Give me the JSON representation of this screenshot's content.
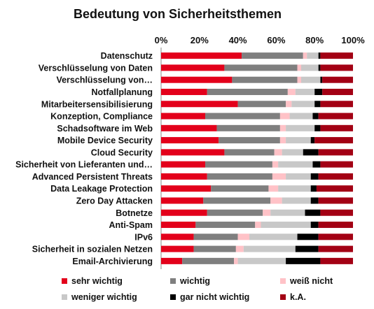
{
  "chart_data": {
    "type": "bar",
    "stacked": true,
    "orientation": "horizontal",
    "percent": true,
    "title": "Bedeutung von Sicherheitsthemen",
    "xlim": [
      0,
      100
    ],
    "x_ticks": [
      "0%",
      "20%",
      "40%",
      "60%",
      "80%",
      "100%"
    ],
    "legend_position": "bottom",
    "categories": [
      "Datenschutz",
      "Verschlüsselung von Daten",
      "Verschlüsselung von…",
      "Notfallplanung",
      "Mitarbeitersensibilisierung",
      "Konzeption, Compliance",
      "Schadsoftware im Web",
      "Mobile Device Security",
      "Cloud Security",
      "Sicherheit von Lieferanten und…",
      "Advanced Persistent Threats",
      "Data Leakage Protection",
      "Zero Day Attacken",
      "Botnetze",
      "Anti-Spam",
      "IPv6",
      "Sicherheit in sozialen Netzen",
      "Email-Archivierung"
    ],
    "series": [
      {
        "name": "sehr wichtig",
        "color": "#e3001b",
        "values": [
          42,
          33,
          37,
          24,
          40,
          23,
          29,
          30,
          33,
          23,
          24,
          26,
          22,
          24,
          18,
          17,
          17,
          11
        ]
      },
      {
        "name": "wichtig",
        "color": "#7f7f7f",
        "values": [
          32,
          38,
          34,
          42,
          25,
          39,
          33,
          32,
          26,
          35,
          34,
          30,
          35,
          29,
          31,
          23,
          22,
          27
        ]
      },
      {
        "name": "weiß nicht",
        "color": "#ffc2c7",
        "values": [
          2,
          2,
          2,
          4,
          3,
          5,
          3,
          3,
          4,
          3,
          7,
          5,
          6,
          4,
          3,
          6,
          4,
          2
        ]
      },
      {
        "name": "weniger wichtig",
        "color": "#c8c8c8",
        "values": [
          6,
          9,
          10,
          10,
          12,
          12,
          15,
          13,
          11,
          18,
          13,
          17,
          15,
          18,
          26,
          25,
          27,
          25
        ]
      },
      {
        "name": "gar nicht wichtig",
        "color": "#000000",
        "values": [
          1,
          1,
          1,
          4,
          3,
          3,
          3,
          2,
          8,
          4,
          4,
          3,
          4,
          8,
          4,
          11,
          12,
          18
        ]
      },
      {
        "name": "k.A.",
        "color": "#a30014",
        "values": [
          17,
          17,
          16,
          16,
          17,
          18,
          17,
          20,
          18,
          17,
          18,
          19,
          18,
          17,
          18,
          18,
          18,
          17
        ]
      }
    ]
  }
}
